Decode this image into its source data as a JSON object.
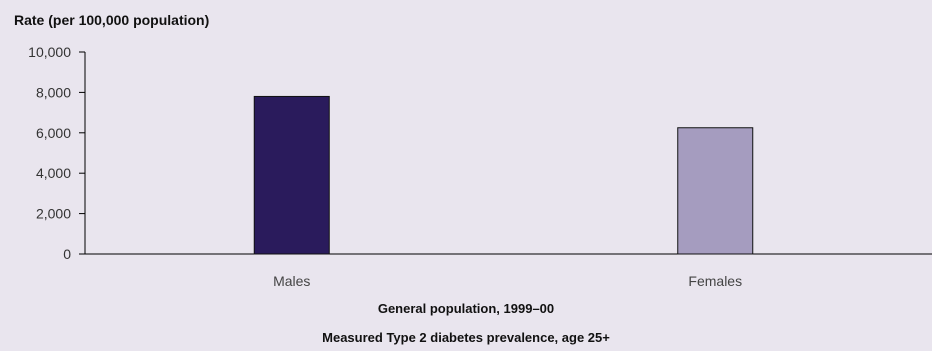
{
  "chart_data": {
    "type": "bar",
    "ylabel": "Rate (per 100,000 population)",
    "categories": [
      "Males",
      "Females"
    ],
    "values": [
      7800,
      6250
    ],
    "ylim": [
      0,
      10000
    ],
    "yticks": [
      0,
      2000,
      4000,
      6000,
      8000,
      10000
    ],
    "ytick_labels": [
      "0",
      "2,000",
      "4,000",
      "6,000",
      "8,000",
      "10,000"
    ],
    "xlabel": "General population, 1999–00",
    "caption": "Measured Type 2 diabetes prevalence, age 25+",
    "grid": false,
    "colors": [
      "#2a1b5c",
      "#a59cbf"
    ]
  }
}
